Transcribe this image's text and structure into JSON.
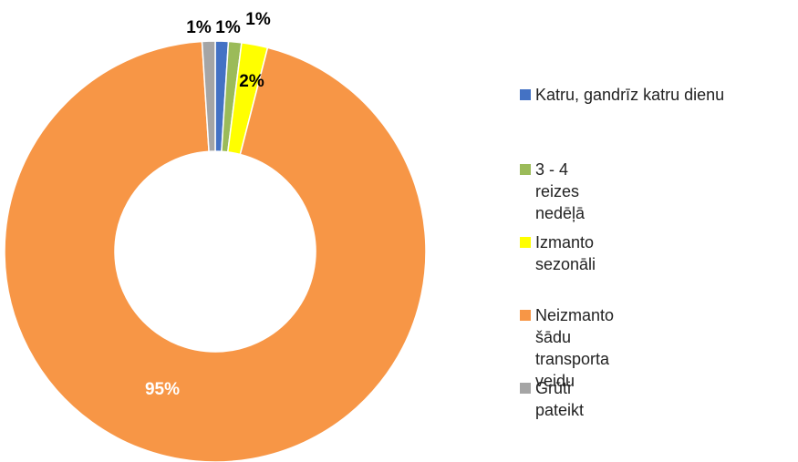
{
  "chart_data": {
    "type": "donut",
    "categories": [
      "Katru, gandrīz katru dienu",
      "3 - 4 reizes nedēļā",
      "Izmanto sezonāli",
      "Neizmanto šādu transporta veidu",
      "Grūti pateikt"
    ],
    "values": [
      1,
      1,
      2,
      95,
      1
    ],
    "value_labels": [
      "1%",
      "1%",
      "2%",
      "95%",
      "1%"
    ],
    "colors": [
      "#4472c4",
      "#9bbb59",
      "#ffff00",
      "#f79646",
      "#a5a5a5"
    ]
  }
}
